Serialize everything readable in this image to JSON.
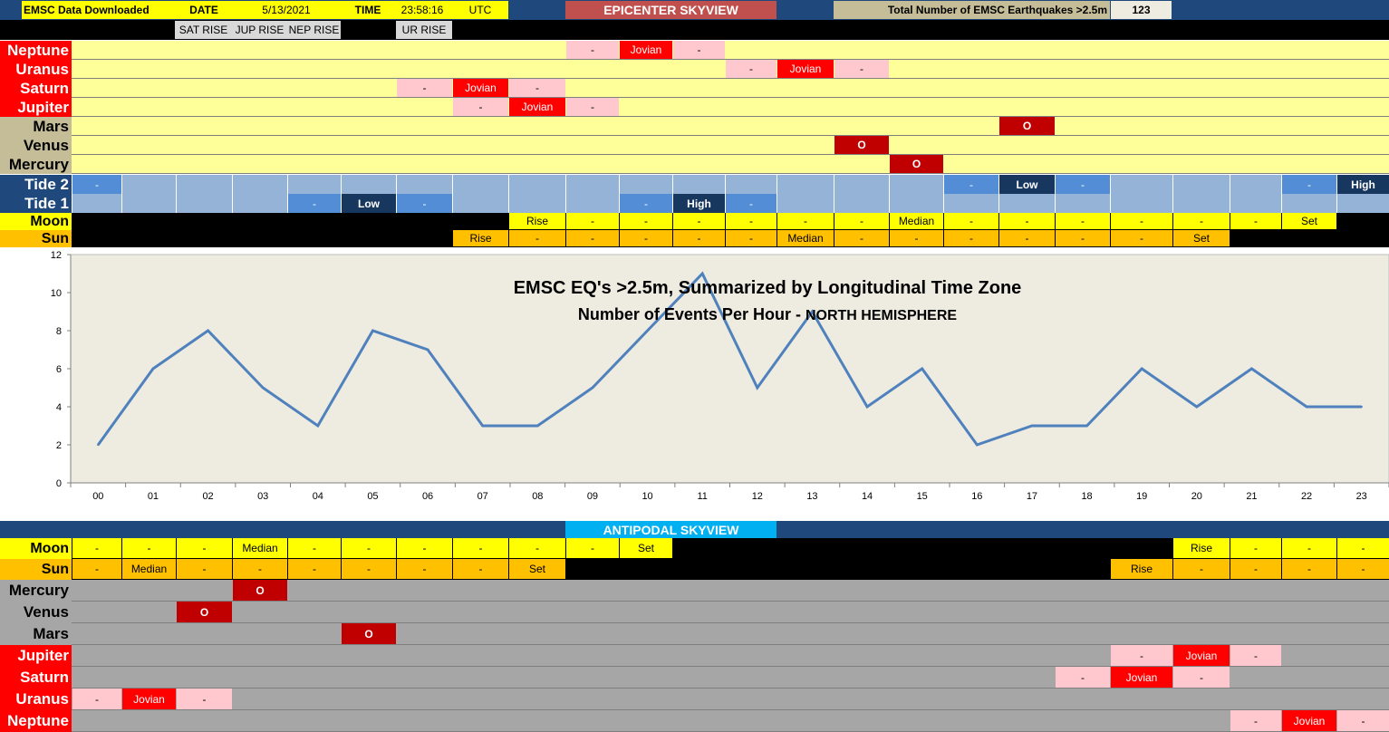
{
  "header": {
    "downloaded": "EMSC Data Downloaded",
    "date_label": "DATE",
    "date_value": "5/13/2021",
    "time_label": "TIME",
    "time_value": "23:58:16",
    "tz": "UTC",
    "epicenter_title": "EPICENTER SKYVIEW",
    "total_label": "Total Number of EMSC Earthquakes >2.5m",
    "total_value": "123",
    "sat_rise": "SAT RISE",
    "jup_rise": "JUP RISE",
    "nep_rise": "NEP RISE",
    "ur_rise": "UR RISE"
  },
  "epicenter_rows": [
    {
      "label": "Neptune",
      "kind": "planet",
      "cells": {
        "9": "-",
        "10": "Jovian",
        "11": "-"
      }
    },
    {
      "label": "Uranus",
      "kind": "planet",
      "cells": {
        "12": "-",
        "13": "Jovian",
        "14": "-"
      }
    },
    {
      "label": "Saturn",
      "kind": "planet",
      "cells": {
        "6": "-",
        "7": "Jovian",
        "8": "-"
      }
    },
    {
      "label": "Jupiter",
      "kind": "planet",
      "cells": {
        "7": "-",
        "8": "Jovian",
        "9": "-"
      }
    },
    {
      "label": "Mars",
      "kind": "inner",
      "cells": {
        "17": "O"
      }
    },
    {
      "label": "Venus",
      "kind": "inner",
      "cells": {
        "14": "O"
      }
    },
    {
      "label": "Mercury",
      "kind": "inner",
      "cells": {
        "15": "O"
      }
    }
  ],
  "tide2": {
    "label": "Tide 2",
    "cells": {
      "0": "-",
      "16": "-",
      "17": "Low",
      "18": "-",
      "22": "-",
      "23": "High"
    }
  },
  "tide1": {
    "label": "Tide 1",
    "cells": {
      "4": "-",
      "5": "Low",
      "6": "-",
      "10": "-",
      "11": "High",
      "12": "-"
    }
  },
  "moon_top": {
    "label": "Moon",
    "cells": [
      "",
      "",
      "",
      "",
      "",
      "",
      "",
      "",
      "Rise",
      "-",
      "-",
      "-",
      "-",
      "-",
      "-",
      "Median",
      "-",
      "-",
      "-",
      "-",
      "-",
      "-",
      "Set",
      ""
    ]
  },
  "sun_top": {
    "label": "Sun",
    "cells": [
      "",
      "",
      "",
      "",
      "",
      "",
      "",
      "Rise",
      "-",
      "-",
      "-",
      "-",
      "-",
      "Median",
      "-",
      "-",
      "-",
      "-",
      "-",
      "-",
      "Set",
      "",
      "",
      ""
    ]
  },
  "antipodal_title": "ANTIPODAL SKYVIEW",
  "moon_bottom": {
    "label": "Moon",
    "cells": [
      "-",
      "-",
      "-",
      "Median",
      "-",
      "-",
      "-",
      "-",
      "-",
      "-",
      "Set",
      "",
      "",
      "",
      "",
      "",
      "",
      "",
      "",
      "",
      "Rise",
      "-",
      "-",
      "-"
    ]
  },
  "sun_bottom": {
    "label": "Sun",
    "cells": [
      "-",
      "Median",
      "-",
      "-",
      "-",
      "-",
      "-",
      "-",
      "Set",
      "",
      "",
      "",
      "",
      "",
      "",
      "",
      "",
      "",
      "",
      "Rise",
      "-",
      "-",
      "-",
      "-"
    ]
  },
  "antipodal_rows": [
    {
      "label": "Mercury",
      "kind": "inner",
      "cells": {
        "3": "O"
      }
    },
    {
      "label": "Venus",
      "kind": "inner",
      "cells": {
        "2": "O"
      }
    },
    {
      "label": "Mars",
      "kind": "inner",
      "cells": {
        "5": "O"
      }
    },
    {
      "label": "Jupiter",
      "kind": "planet",
      "cells": {
        "19": "-",
        "20": "Jovian",
        "21": "-"
      }
    },
    {
      "label": "Saturn",
      "kind": "planet",
      "cells": {
        "18": "-",
        "19": "Jovian",
        "20": "-"
      }
    },
    {
      "label": "Uranus",
      "kind": "planet",
      "cells": {
        "0": "-",
        "1": "Jovian",
        "2": "-"
      }
    },
    {
      "label": "Neptune",
      "kind": "planet",
      "cells": {
        "21": "-",
        "22": "Jovian",
        "23": "-"
      }
    }
  ],
  "colors": {
    "navy": "#1F497D",
    "yellow": "#FFFF00",
    "pale_yellow": "#FFFF99",
    "pink": "#FFC7CE",
    "red": "#FF0000",
    "dark_red": "#C00000",
    "tan": "#C4BD97",
    "orange": "#FFC000",
    "tide_light": "#95B3D7",
    "tide_mid": "#538DD5",
    "tide_dark": "#17375E",
    "gray": "#A6A6A6",
    "cyan": "#00B0F0",
    "chart_bg": "#EEECE1",
    "line": "#4F81BD"
  },
  "chart_data": {
    "type": "line",
    "title": "EMSC EQ's >2.5m, Summarized by Longitudinal Time Zone",
    "subtitle_main": "Number of Events Per Hour - ",
    "subtitle_region": "NORTH HEMISPHERE",
    "categories": [
      "00",
      "01",
      "02",
      "03",
      "04",
      "05",
      "06",
      "07",
      "08",
      "09",
      "10",
      "11",
      "12",
      "13",
      "14",
      "15",
      "16",
      "17",
      "18",
      "19",
      "20",
      "21",
      "22",
      "23"
    ],
    "values": [
      2,
      6,
      8,
      5,
      3,
      8,
      7,
      3,
      3,
      5,
      8,
      11,
      5,
      9,
      4,
      6,
      2,
      3,
      3,
      6,
      4,
      6,
      4,
      4
    ],
    "y_ticks": [
      "0",
      "2",
      "4",
      "6",
      "8",
      "10",
      "12"
    ],
    "ylim": [
      0,
      12
    ],
    "grid": true,
    "legend": "none"
  }
}
